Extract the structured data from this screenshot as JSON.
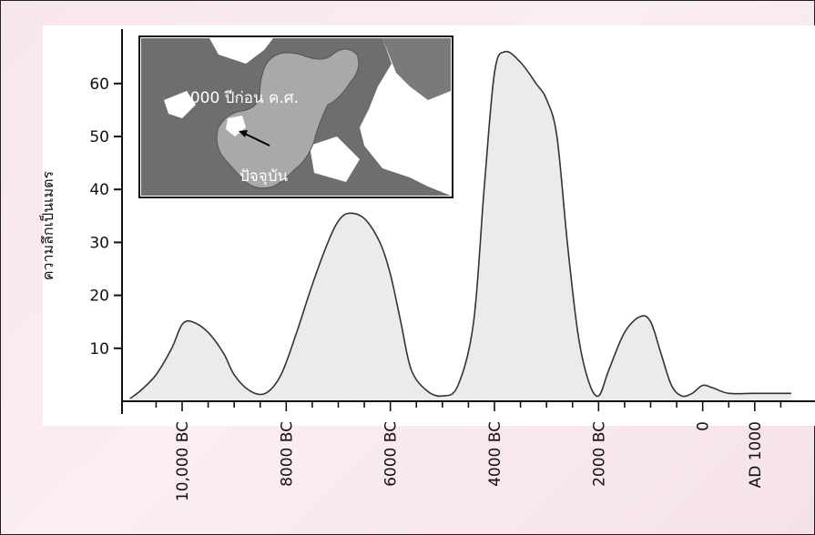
{
  "chart_data": {
    "type": "area",
    "ylabel": "ความลึกเป็นเมตร",
    "y_ticks": [
      10,
      20,
      30,
      40,
      50,
      60
    ],
    "ylim": [
      0,
      70
    ],
    "x_tick_labels": [
      "10,000 BC",
      "8000 BC",
      "6000 BC",
      "4000 BC",
      "2000 BC",
      "0",
      "AD 1000"
    ],
    "x_tick_values": [
      -10000,
      -8000,
      -6000,
      -4000,
      -2000,
      0,
      1000
    ],
    "xlim": [
      -11000,
      1700
    ],
    "x": [
      -11000,
      -10800,
      -10500,
      -10200,
      -10000,
      -9800,
      -9500,
      -9200,
      -9000,
      -8700,
      -8400,
      -8100,
      -7800,
      -7500,
      -7200,
      -7000,
      -6800,
      -6500,
      -6200,
      -6000,
      -5800,
      -5600,
      -5300,
      -5000,
      -4700,
      -4400,
      -4200,
      -4000,
      -3800,
      -3500,
      -3200,
      -3000,
      -2800,
      -2600,
      -2400,
      -2200,
      -2000,
      -1800,
      -1500,
      -1200,
      -1000,
      -800,
      -600,
      -400,
      -200,
      0,
      200,
      500,
      1000,
      1700
    ],
    "series": [
      {
        "values": [
          0.5,
          2,
          5,
          10,
          14.5,
          15,
          13,
          9,
          5,
          2,
          1.5,
          5,
          13,
          22,
          30,
          34,
          35.5,
          34.5,
          30,
          24,
          15,
          6,
          2,
          1,
          3,
          15,
          40,
          62,
          66,
          64,
          60,
          57,
          50,
          30,
          13,
          4,
          1,
          6,
          13,
          16,
          15,
          9,
          3,
          1,
          1.5,
          3,
          2.5,
          1.5,
          1.5,
          1.5
        ]
      }
    ],
    "inset": {
      "label_past": "4000 ปีก่อน  ค.ศ.",
      "label_present": "ปัจจุบัน"
    }
  }
}
